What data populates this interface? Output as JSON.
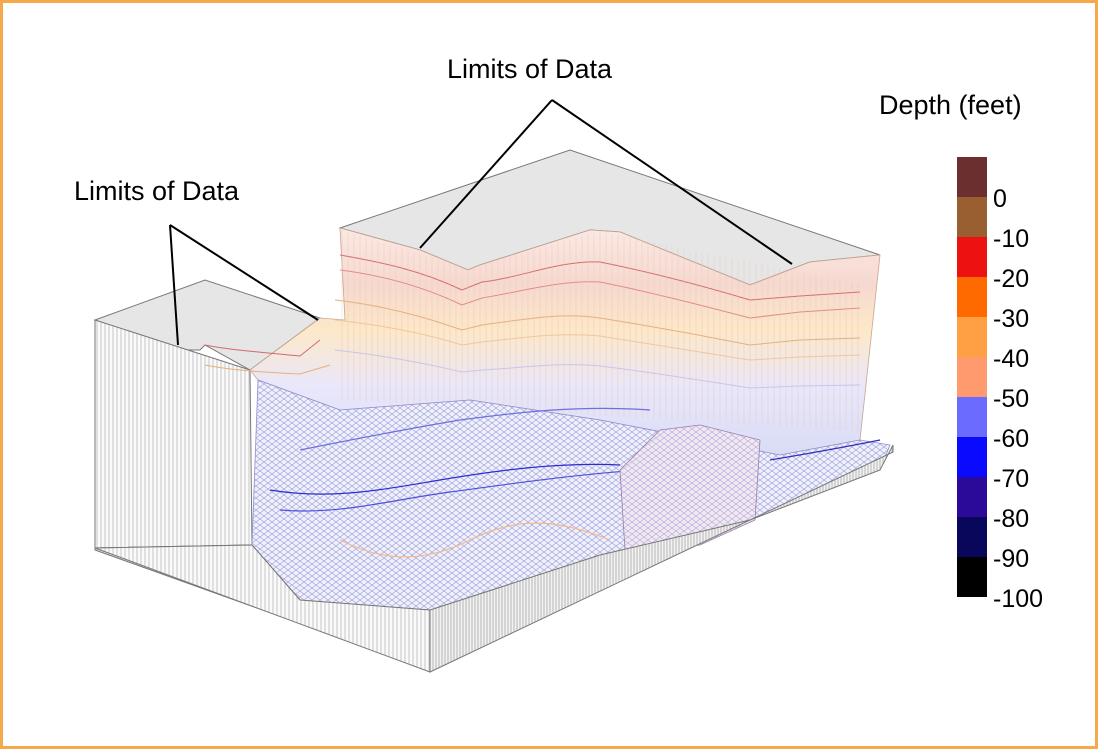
{
  "annotations": {
    "label_left": "Limits of Data",
    "label_top": "Limits of Data"
  },
  "legend": {
    "title": "Depth (feet)",
    "entries": [
      {
        "label": "0",
        "color": "#6b2f2f"
      },
      {
        "label": "-10",
        "color": "#9a5f30"
      },
      {
        "label": "-20",
        "color": "#ee1111"
      },
      {
        "label": "-30",
        "color": "#ff6a00"
      },
      {
        "label": "-40",
        "color": "#ffa044"
      },
      {
        "label": "-50",
        "color": "#ff9a6e"
      },
      {
        "label": "-60",
        "color": "#6b6bff"
      },
      {
        "label": "-70",
        "color": "#0a0aff"
      },
      {
        "label": "-80",
        "color": "#2b0a99"
      },
      {
        "label": "-90",
        "color": "#08075c"
      },
      {
        "label": "-100",
        "color": "#000000"
      }
    ]
  },
  "colors": {
    "frame": "#f4a94d",
    "block_top": "#e8e8e8",
    "block_side": "#c8c8c8",
    "mesh_shallow": "#f0c89a",
    "mesh_deep": "#4040c8"
  }
}
